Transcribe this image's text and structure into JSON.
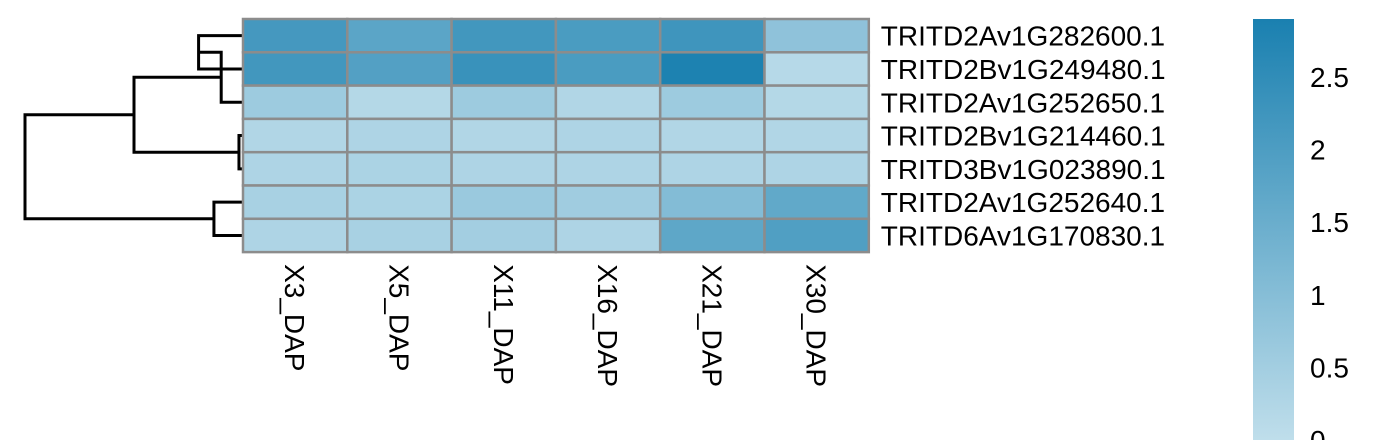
{
  "chart_data": {
    "type": "heatmap",
    "title": "",
    "xlabel": "",
    "ylabel": "",
    "columns": [
      "X3_DAP",
      "X5_DAP",
      "X11_DAP",
      "X16_DAP",
      "X21_DAP",
      "X30_DAP"
    ],
    "rows": [
      "TRITD2Av1G282600.1",
      "TRITD2Bv1G249480.1",
      "TRITD2Av1G252650.1",
      "TRITD2Bv1G214460.1",
      "TRITD3Bv1G023890.1",
      "TRITD2Av1G252640.1",
      "TRITD6Av1G170830.1"
    ],
    "values": [
      [
        2.15,
        1.75,
        2.2,
        2.05,
        2.25,
        0.85
      ],
      [
        2.2,
        1.9,
        2.35,
        2.05,
        2.85,
        0.15
      ],
      [
        0.6,
        0.2,
        0.6,
        0.25,
        0.6,
        0.2
      ],
      [
        0.25,
        0.3,
        0.25,
        0.3,
        0.25,
        0.25
      ],
      [
        0.3,
        0.35,
        0.3,
        0.3,
        0.3,
        0.3
      ],
      [
        0.4,
        0.35,
        0.65,
        0.55,
        1.05,
        1.65
      ],
      [
        0.3,
        0.4,
        0.5,
        0.3,
        1.7,
        1.95
      ]
    ],
    "color_scale": {
      "min": 0,
      "max": 2.9,
      "low_color": "#bfdeeb",
      "high_color": "#1a80b0",
      "ticks": [
        0,
        0.5,
        1,
        1.5,
        2,
        2.5
      ],
      "tick_labels": [
        "0",
        "0.5",
        "1",
        "1.5",
        "2",
        "2.5"
      ]
    },
    "grid_color": "#8c8c8c",
    "dendrogram_color": "#000000",
    "row_dendrogram": [
      {
        "a": 0,
        "b": 1,
        "h": 0.55
      },
      {
        "a": 3,
        "b": 4,
        "h": 0.05
      },
      {
        "a": 2,
        "b": 7,
        "h": 0.27
      },
      {
        "a": 5,
        "b": 6,
        "h": 0.36
      },
      {
        "a": 8,
        "b": 9,
        "h": 1.35
      },
      {
        "a": 10,
        "b": 11,
        "h": 2.7
      }
    ]
  }
}
